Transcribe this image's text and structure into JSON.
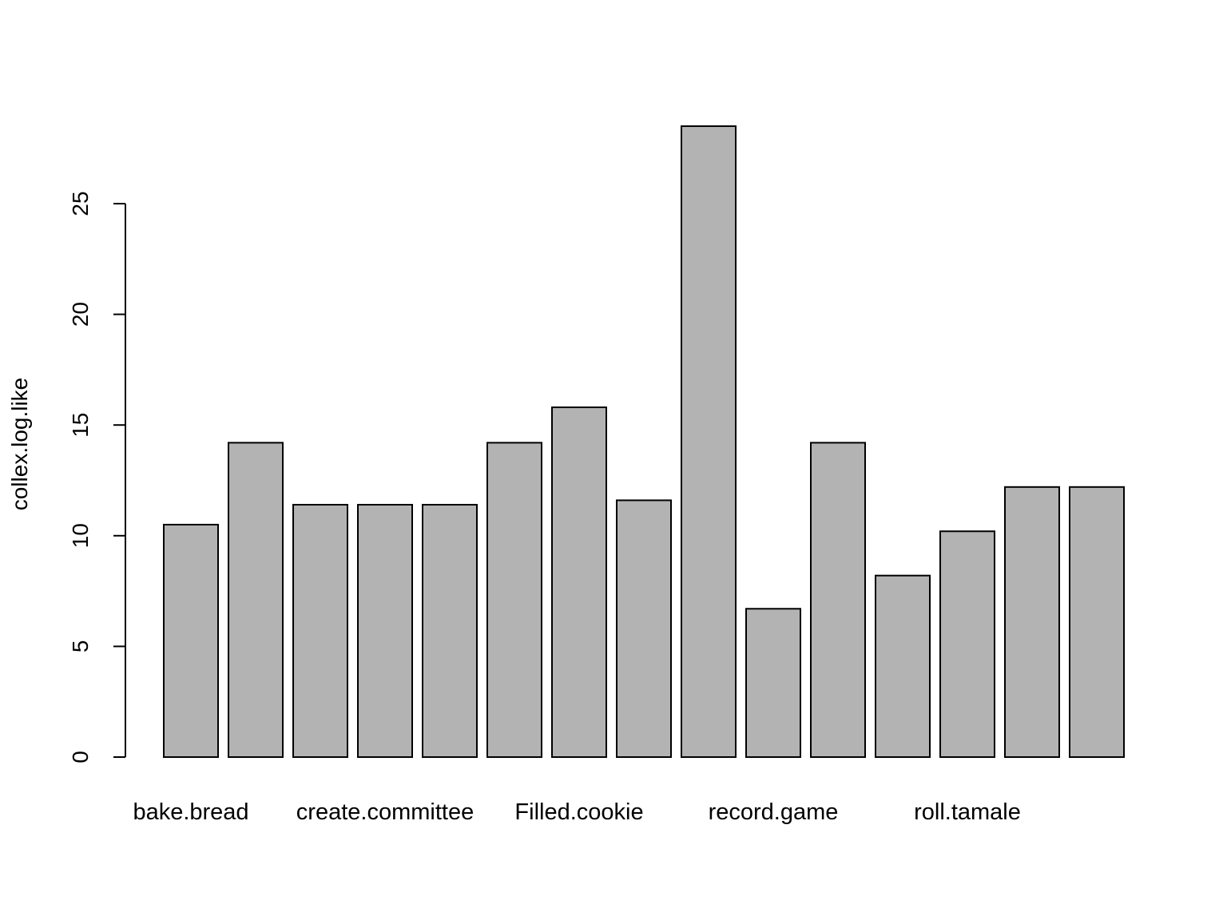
{
  "chart_data": {
    "type": "bar",
    "title": "",
    "xlabel": "",
    "ylabel": "collex.log.like",
    "ylim": [
      0,
      28.5
    ],
    "y_ticks": [
      0,
      5,
      10,
      15,
      20,
      25
    ],
    "grid": false,
    "bar_fill": "#b3b3b3",
    "bar_stroke": "#000000",
    "values": [
      10.5,
      14.2,
      11.4,
      11.4,
      11.4,
      14.2,
      15.8,
      11.6,
      28.5,
      6.7,
      14.2,
      8.2,
      10.2,
      12.2,
      12.2
    ],
    "x_tick_labels": [
      {
        "bar_index": 0,
        "text": "bake.bread"
      },
      {
        "bar_index": 3,
        "text": "create.committee"
      },
      {
        "bar_index": 6,
        "text": "Filled.cookie"
      },
      {
        "bar_index": 9,
        "text": "record.game"
      },
      {
        "bar_index": 12,
        "text": "roll.tamale"
      }
    ]
  }
}
